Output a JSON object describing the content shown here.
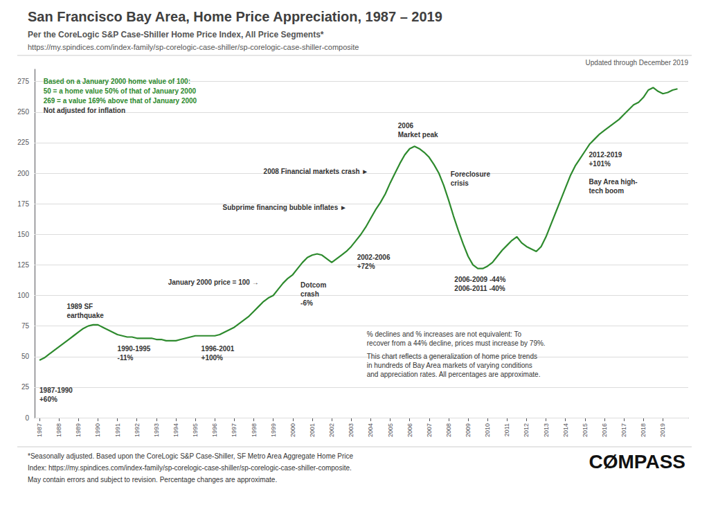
{
  "chart_data": {
    "type": "line",
    "title": "San Francisco Bay Area, Home Price Appreciation, 1987 – 2019",
    "subtitle": "Per the CoreLogic S&P Case-Shiller Home Price Index, All Price Segments*",
    "url": "https://my.spindices.com/index-family/sp-corelogic-case-shiller/sp-corelogic-case-shiller-composite",
    "updated_text": "Updated through December 2019",
    "color": "#2d8a2d",
    "x": [
      1987.0,
      1987.25,
      1987.5,
      1987.75,
      1988.0,
      1988.25,
      1988.5,
      1988.75,
      1989.0,
      1989.25,
      1989.5,
      1989.75,
      1990.0,
      1990.25,
      1990.5,
      1990.75,
      1991.0,
      1991.25,
      1991.5,
      1991.75,
      1992.0,
      1992.25,
      1992.5,
      1992.75,
      1993.0,
      1993.25,
      1993.5,
      1993.75,
      1994.0,
      1994.25,
      1994.5,
      1994.75,
      1995.0,
      1995.25,
      1995.5,
      1995.75,
      1996.0,
      1996.25,
      1996.5,
      1996.75,
      1997.0,
      1997.25,
      1997.5,
      1997.75,
      1998.0,
      1998.25,
      1998.5,
      1998.75,
      1999.0,
      1999.25,
      1999.5,
      1999.75,
      2000.0,
      2000.25,
      2000.5,
      2000.75,
      2001.0,
      2001.25,
      2001.5,
      2001.75,
      2002.0,
      2002.25,
      2002.5,
      2002.75,
      2003.0,
      2003.25,
      2003.5,
      2003.75,
      2004.0,
      2004.25,
      2004.5,
      2004.75,
      2005.0,
      2005.25,
      2005.5,
      2005.75,
      2006.0,
      2006.25,
      2006.5,
      2006.75,
      2007.0,
      2007.25,
      2007.5,
      2007.75,
      2008.0,
      2008.25,
      2008.5,
      2008.75,
      2009.0,
      2009.25,
      2009.5,
      2009.75,
      2010.0,
      2010.25,
      2010.5,
      2010.75,
      2011.0,
      2011.25,
      2011.5,
      2011.75,
      2012.0,
      2012.25,
      2012.5,
      2012.75,
      2013.0,
      2013.25,
      2013.5,
      2013.75,
      2014.0,
      2014.25,
      2014.5,
      2014.75,
      2015.0,
      2015.25,
      2015.5,
      2015.75,
      2016.0,
      2016.25,
      2016.5,
      2016.75,
      2017.0,
      2017.25,
      2017.5,
      2017.75,
      2018.0,
      2018.25,
      2018.5,
      2018.75,
      2019.0,
      2019.25,
      2019.5,
      2019.75
    ],
    "values": [
      47,
      49,
      52,
      55,
      58,
      61,
      64,
      67,
      70,
      73,
      75,
      76,
      76,
      74,
      72,
      70,
      68,
      67,
      66,
      66,
      65,
      65,
      65,
      65,
      64,
      64,
      63,
      63,
      63,
      64,
      65,
      66,
      67,
      67,
      67,
      67,
      67,
      68,
      70,
      72,
      74,
      77,
      80,
      83,
      87,
      91,
      95,
      98,
      100,
      105,
      110,
      114,
      117,
      122,
      127,
      131,
      133,
      134,
      133,
      130,
      127,
      130,
      133,
      136,
      140,
      145,
      150,
      156,
      163,
      170,
      176,
      183,
      192,
      200,
      208,
      215,
      220,
      222,
      220,
      217,
      213,
      207,
      200,
      190,
      178,
      165,
      153,
      142,
      132,
      125,
      122,
      122,
      124,
      127,
      132,
      137,
      141,
      145,
      148,
      143,
      140,
      138,
      136,
      140,
      148,
      158,
      168,
      178,
      188,
      198,
      206,
      212,
      218,
      224,
      228,
      232,
      235,
      238,
      241,
      244,
      248,
      252,
      256,
      258,
      262,
      268,
      270,
      267,
      265,
      266,
      268,
      269
    ],
    "xlim": [
      1986.75,
      2020.3
    ],
    "xticks": [
      1987,
      1988,
      1989,
      1990,
      1991,
      1992,
      1993,
      1994,
      1995,
      1996,
      1997,
      1998,
      1999,
      2000,
      2001,
      2002,
      2003,
      2004,
      2005,
      2006,
      2007,
      2008,
      2009,
      2010,
      2011,
      2012,
      2013,
      2014,
      2015,
      2016,
      2017,
      2018,
      2019
    ],
    "ylim": [
      0,
      285
    ],
    "yticks": [
      0,
      25,
      50,
      75,
      100,
      125,
      150,
      175,
      200,
      225,
      250,
      275
    ],
    "grid": true,
    "annotations": [
      {
        "text": "Based on a January 2000 home value of 100:",
        "color": "#2d8a2d"
      },
      {
        "text": "50 = a home value 50% of that of January 2000",
        "color": "#2d8a2d"
      },
      {
        "text": "269 = a value 169% above that of January 2000",
        "color": "#2d8a2d"
      },
      {
        "text": "Not adjusted for inflation",
        "color": "#333333"
      },
      {
        "text": "1987-1990\n+60%",
        "color": "#333333"
      },
      {
        "text": "1989 SF\nearthquake",
        "color": "#333333"
      },
      {
        "text": "1990-1995\n-11%",
        "color": "#333333"
      },
      {
        "text": "January 2000 price = 100 →",
        "color": "#333333"
      },
      {
        "text": "1996-2001\n+100%",
        "color": "#333333"
      },
      {
        "text": "Dotcom\ncrash\n-6%",
        "color": "#333333"
      },
      {
        "text": "Subprime financing bubble inflates ►",
        "color": "#333333"
      },
      {
        "text": "2002-2006\n+72%",
        "color": "#333333"
      },
      {
        "text": "2006\nMarket peak",
        "color": "#333333"
      },
      {
        "text": "2008 Financial markets crash ►",
        "color": "#333333"
      },
      {
        "text": "Foreclosure\ncrisis",
        "color": "#333333"
      },
      {
        "text": "2006-2009 -44%\n2006-2011 -40%",
        "color": "#333333"
      },
      {
        "text": "2012-2019\n+101%",
        "color": "#333333"
      },
      {
        "text": "Bay Area high-\ntech boom",
        "color": "#333333"
      },
      {
        "text": "% declines and % increases are not equivalent: To\nrecover from a 44% decline, prices must increase by 79%.",
        "color": "#333333"
      },
      {
        "text": "This chart reflects a generalization of home price trends\nin hundreds of Bay Area markets of varying conditions\nand appreciation rates. All percentages are approximate.",
        "color": "#333333"
      }
    ],
    "footer": [
      "*Seasonally adjusted. Based upon the CoreLogic S&P Case-Shiller, SF Metro Area Aggregate Home Price",
      "Index: https://my.spindices.com/index-family/sp-corelogic-case-shiller/sp-corelogic-case-shiller-composite.",
      "May contain errors and subject to revision. Percentage changes are approximate."
    ],
    "logo": "CØMPASS"
  }
}
